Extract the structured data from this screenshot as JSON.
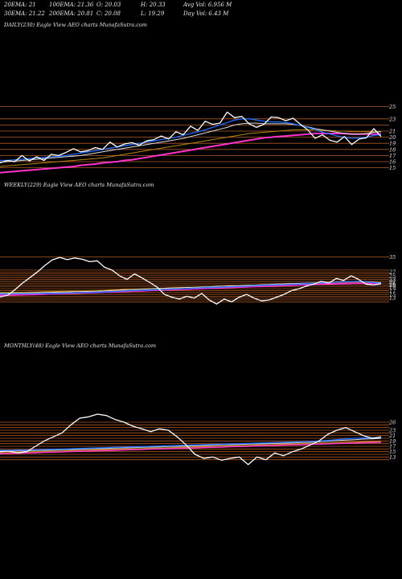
{
  "header": {
    "row1": [
      "20EMA: 21",
      "100EMA: 21.36",
      "O: 20.03",
      "H: 20.33",
      "Avg Vol: 6.956  M"
    ],
    "row2": [
      "30EMA: 21.22",
      "200EMA: 20.81",
      "C: 20.08",
      "L: 19.29",
      "Day Vol: 6.43 M"
    ]
  },
  "colors": {
    "background": "#000000",
    "price": "#ffffff",
    "ema20": "#1e6bff",
    "ema30": "#e0e0e0",
    "ema100": "#b8860b",
    "ema200": "#ff33cc",
    "levels": "#b05a28"
  },
  "chart_data": [
    {
      "type": "line",
      "title": "DAILY(230) Eagle  View  AEO charts MunafaSutra.com",
      "ylim": [
        13.5,
        26
      ],
      "right_ticks": [
        25,
        23,
        21,
        20,
        19,
        18,
        17,
        16,
        15
      ],
      "levels": [
        25,
        23,
        22,
        21,
        20,
        19,
        18,
        17,
        16,
        15
      ],
      "series": [
        {
          "key": "price",
          "values": [
            15.8,
            16.2,
            16.0,
            17.0,
            16.1,
            16.8,
            16.2,
            17.2,
            17.0,
            17.5,
            18.1,
            17.6,
            17.8,
            18.3,
            18.0,
            19.2,
            18.4,
            18.9,
            19.1,
            18.7,
            19.4,
            19.6,
            20.2,
            19.7,
            20.9,
            20.4,
            21.8,
            21.1,
            22.6,
            22.1,
            22.3,
            24.1,
            23.2,
            23.4,
            22.2,
            21.6,
            22.1,
            23.3,
            23.2,
            22.7,
            23.1,
            22.1,
            21.2,
            19.8,
            20.4,
            19.5,
            19.2,
            20.1,
            18.8,
            19.7,
            19.9,
            21.4,
            20.1
          ]
        },
        {
          "key": "ema20",
          "values": [
            16.2,
            16.2,
            16.3,
            16.4,
            16.5,
            16.6,
            16.7,
            16.8,
            16.9,
            17.0,
            17.2,
            17.4,
            17.6,
            17.8,
            18.0,
            18.2,
            18.4,
            18.6,
            18.8,
            19.0,
            19.2,
            19.4,
            19.6,
            19.8,
            20.0,
            20.3,
            20.6,
            20.9,
            21.2,
            21.6,
            22.0,
            22.4,
            22.8,
            23.0,
            23.0,
            22.8,
            22.6,
            22.5,
            22.5,
            22.4,
            22.2,
            21.9,
            21.6,
            21.2,
            20.8,
            20.5,
            20.2,
            20.0,
            19.8,
            19.9,
            20.0,
            20.3,
            20.4
          ]
        },
        {
          "key": "ema30",
          "values": [
            15.9,
            16.0,
            16.1,
            16.2,
            16.3,
            16.4,
            16.5,
            16.6,
            16.7,
            16.8,
            16.9,
            17.0,
            17.2,
            17.4,
            17.6,
            17.8,
            18.0,
            18.2,
            18.4,
            18.6,
            18.8,
            19.0,
            19.2,
            19.4,
            19.6,
            19.8,
            20.1,
            20.4,
            20.7,
            21.0,
            21.3,
            21.6,
            22.0,
            22.2,
            22.3,
            22.3,
            22.2,
            22.2,
            22.2,
            22.2,
            22.1,
            21.9,
            21.7,
            21.4,
            21.2,
            21.0,
            20.8,
            20.6,
            20.5,
            20.5,
            20.6,
            20.8,
            20.9
          ]
        },
        {
          "key": "ema100",
          "values": [
            15.2,
            15.3,
            15.4,
            15.5,
            15.6,
            15.7,
            15.8,
            15.9,
            16.0,
            16.1,
            16.2,
            16.3,
            16.4,
            16.5,
            16.6,
            16.8,
            17.0,
            17.2,
            17.4,
            17.6,
            17.8,
            18.0,
            18.2,
            18.4,
            18.6,
            18.8,
            19.0,
            19.2,
            19.4,
            19.6,
            19.8,
            20.0,
            20.2,
            20.4,
            20.6,
            20.7,
            20.8,
            20.9,
            21.0,
            21.1,
            21.2,
            21.2,
            21.2,
            21.2,
            21.1,
            21.1,
            21.0,
            21.0,
            20.9,
            20.9,
            20.9,
            20.9,
            20.9
          ]
        },
        {
          "key": "ema200",
          "values": [
            14.2,
            14.3,
            14.4,
            14.5,
            14.6,
            14.7,
            14.8,
            14.9,
            15.0,
            15.1,
            15.2,
            15.4,
            15.5,
            15.6,
            15.8,
            15.9,
            16.0,
            16.2,
            16.3,
            16.5,
            16.7,
            16.9,
            17.1,
            17.3,
            17.5,
            17.7,
            17.9,
            18.1,
            18.3,
            18.5,
            18.7,
            18.9,
            19.1,
            19.3,
            19.5,
            19.7,
            19.9,
            20.0,
            20.1,
            20.2,
            20.3,
            20.4,
            20.5,
            20.6,
            20.6,
            20.6,
            20.6,
            20.6,
            20.5,
            20.5,
            20.5,
            20.5,
            20.5
          ]
        }
      ]
    },
    {
      "type": "line",
      "title": "WEEKLY(229) Eagle  View  AEO charts MunafaSutra.com",
      "ylim": [
        9,
        37
      ],
      "right_ticks": [
        35,
        27,
        25,
        23,
        22,
        21,
        20,
        19,
        17,
        15,
        13
      ],
      "levels": [
        35,
        28,
        27,
        26,
        25,
        24,
        23,
        22,
        21,
        20,
        19,
        18,
        17,
        16,
        15,
        14,
        13,
        12,
        11
      ],
      "series": [
        {
          "key": "price",
          "values": [
            13.6,
            14.5,
            17.5,
            21.0,
            24.0,
            27.0,
            30.5,
            33.5,
            34.8,
            33.6,
            34.5,
            33.8,
            32.5,
            33.0,
            29.5,
            28.0,
            25.0,
            23.0,
            26.0,
            23.8,
            21.5,
            19.0,
            15.0,
            13.5,
            12.5,
            14.0,
            13.0,
            15.5,
            12.0,
            9.8,
            12.5,
            11.0,
            13.5,
            15.0,
            13.0,
            11.5,
            12.0,
            13.5,
            15.0,
            17.0,
            18.0,
            19.5,
            20.5,
            22.0,
            21.0,
            23.5,
            22.5,
            25.0,
            23.0,
            20.5,
            20.0,
            20.8
          ]
        },
        {
          "key": "ema20",
          "values": [
            15.2,
            15.2,
            15.3,
            15.3,
            15.4,
            15.4,
            15.5,
            15.6,
            15.6,
            15.7,
            15.8,
            15.9,
            16.0,
            16.1,
            16.3,
            16.5,
            16.7,
            16.9,
            17.0,
            17.2,
            17.3,
            17.5,
            17.6,
            17.8,
            18.0,
            18.1,
            18.3,
            18.5,
            18.6,
            18.8,
            19.0,
            19.1,
            19.3,
            19.4,
            19.6,
            19.8,
            19.9,
            20.1,
            20.2,
            20.4,
            20.5,
            20.7,
            20.9,
            21.1,
            21.3,
            21.5,
            21.7,
            21.9,
            22.0,
            21.7,
            21.2,
            20.9
          ]
        },
        {
          "key": "ema30",
          "values": [
            15.6,
            15.6,
            15.7,
            15.7,
            15.8,
            15.9,
            16.0,
            16.1,
            16.2,
            16.3,
            16.4,
            16.5,
            16.6,
            16.7,
            16.9,
            17.1,
            17.3,
            17.5,
            17.6,
            17.8,
            17.9,
            18.1,
            18.2,
            18.4,
            18.5,
            18.7,
            18.8,
            19.0,
            19.1,
            19.3,
            19.4,
            19.6,
            19.7,
            19.9,
            20.0,
            20.2,
            20.3,
            20.5,
            20.6,
            20.8,
            20.9,
            21.0,
            21.2,
            21.3,
            21.5,
            21.6,
            21.8,
            21.9,
            22.0,
            21.8,
            21.5,
            21.2
          ]
        },
        {
          "key": "ema100",
          "values": [
            16.0,
            16.0,
            16.1,
            16.1,
            16.2,
            16.3,
            16.4,
            16.5,
            16.6,
            16.7,
            16.8,
            16.9,
            17.0,
            17.1,
            17.2,
            17.4,
            17.5,
            17.7,
            17.8,
            17.9,
            18.1,
            18.2,
            18.3,
            18.5,
            18.6,
            18.7,
            18.9,
            19.0,
            19.1,
            19.3,
            19.4,
            19.5,
            19.7,
            19.8,
            19.9,
            20.1,
            20.2,
            20.3,
            20.5,
            20.6,
            20.7,
            20.9,
            21.0,
            21.1,
            21.3,
            21.4,
            21.5,
            21.6,
            21.6,
            21.5,
            21.4,
            21.4
          ]
        },
        {
          "key": "ema200",
          "values": [
            14.5,
            14.6,
            14.7,
            14.8,
            14.9,
            15.0,
            15.1,
            15.3,
            15.4,
            15.5,
            15.6,
            15.8,
            15.9,
            16.0,
            16.2,
            16.3,
            16.5,
            16.6,
            16.8,
            16.9,
            17.1,
            17.2,
            17.4,
            17.5,
            17.7,
            17.8,
            18.0,
            18.1,
            18.3,
            18.4,
            18.6,
            18.7,
            18.9,
            19.0,
            19.2,
            19.3,
            19.5,
            19.6,
            19.8,
            19.9,
            20.1,
            20.2,
            20.4,
            20.5,
            20.6,
            20.7,
            20.8,
            20.9,
            21.0,
            20.9,
            20.8,
            20.8
          ]
        }
      ]
    },
    {
      "type": "line",
      "title": "MONTHLY(48) Eagle  View  AEO charts MunafaSutra.com",
      "ylim": [
        9.5,
        29
      ],
      "right_ticks": [
        26,
        23,
        21,
        19,
        17,
        15,
        13
      ],
      "levels": [
        26,
        25,
        24,
        23,
        22,
        21,
        20,
        19,
        18,
        17,
        16,
        15,
        14,
        13,
        12
      ],
      "series": [
        {
          "key": "price",
          "values": [
            15.0,
            15.2,
            14.5,
            15.0,
            17.0,
            19.0,
            20.5,
            22.0,
            25.0,
            27.5,
            28.0,
            29.0,
            28.5,
            27.0,
            26.0,
            24.5,
            23.5,
            22.5,
            23.5,
            23.0,
            20.5,
            17.5,
            14.0,
            12.5,
            13.0,
            11.8,
            12.5,
            13.0,
            10.2,
            13.0,
            12.0,
            14.5,
            13.5,
            15.0,
            16.0,
            17.5,
            19.0,
            21.5,
            23.0,
            24.0,
            22.5,
            21.0,
            20.0,
            20.5
          ]
        },
        {
          "key": "ema20",
          "values": [
            15.5,
            15.5,
            15.6,
            15.6,
            15.7,
            15.8,
            15.9,
            16.0,
            16.1,
            16.2,
            16.3,
            16.4,
            16.5,
            16.6,
            16.7,
            16.8,
            16.9,
            17.0,
            17.1,
            17.2,
            17.3,
            17.4,
            17.5,
            17.6,
            17.7,
            17.8,
            17.9,
            18.0,
            18.1,
            18.2,
            18.3,
            18.4,
            18.5,
            18.6,
            18.7,
            18.8,
            19.0,
            19.2,
            19.5,
            19.8,
            20.0,
            20.1,
            20.2,
            20.3
          ]
        },
        {
          "key": "ema30",
          "values": [
            15.2,
            15.2,
            15.3,
            15.3,
            15.4,
            15.5,
            15.6,
            15.7,
            15.8,
            15.9,
            16.0,
            16.1,
            16.2,
            16.3,
            16.4,
            16.5,
            16.6,
            16.7,
            16.8,
            16.9,
            17.0,
            17.1,
            17.2,
            17.3,
            17.4,
            17.5,
            17.6,
            17.7,
            17.8,
            17.9,
            18.0,
            18.1,
            18.2,
            18.3,
            18.4,
            18.5,
            18.7,
            18.9,
            19.1,
            19.3,
            19.5,
            19.7,
            19.8,
            19.9
          ]
        },
        {
          "key": "ema100",
          "values": [
            14.6,
            14.7,
            14.8,
            14.9,
            15.0,
            15.1,
            15.2,
            15.3,
            15.4,
            15.5,
            15.6,
            15.7,
            15.8,
            15.9,
            16.0,
            16.1,
            16.2,
            16.3,
            16.4,
            16.5,
            16.6,
            16.7,
            16.8,
            16.9,
            17.0,
            17.1,
            17.2,
            17.3,
            17.4,
            17.5,
            17.6,
            17.7,
            17.8,
            17.9,
            18.0,
            18.1,
            18.2,
            18.3,
            18.4,
            18.5,
            18.6,
            18.7,
            18.8,
            18.9
          ]
        },
        {
          "key": "ema200",
          "values": [
            14.3,
            14.4,
            14.5,
            14.6,
            14.7,
            14.8,
            14.9,
            15.0,
            15.1,
            15.2,
            15.3,
            15.4,
            15.5,
            15.6,
            15.7,
            15.8,
            15.9,
            16.0,
            16.1,
            16.2,
            16.3,
            16.4,
            16.5,
            16.6,
            16.7,
            16.8,
            16.9,
            17.0,
            17.1,
            17.2,
            17.3,
            17.4,
            17.5,
            17.6,
            17.7,
            17.8,
            17.9,
            18.0,
            18.1,
            18.2,
            18.3,
            18.4,
            18.5,
            18.6
          ]
        }
      ]
    }
  ]
}
